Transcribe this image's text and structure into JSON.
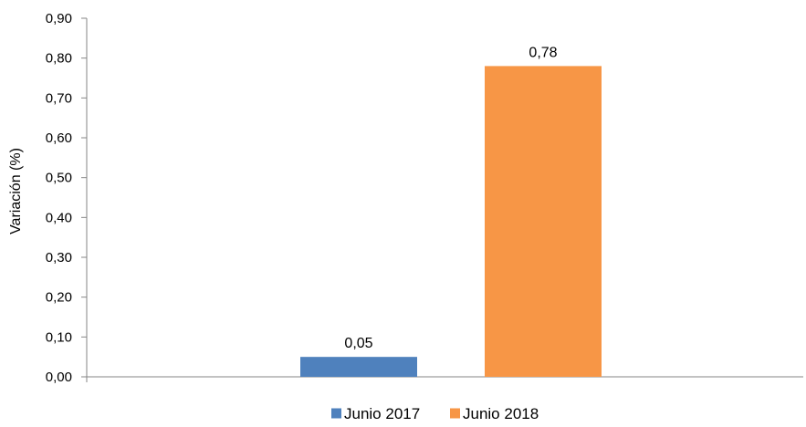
{
  "chart_data": {
    "type": "bar",
    "title": "",
    "xlabel": "",
    "ylabel": "Variación (%)",
    "ylim": [
      0,
      0.9
    ],
    "ytick_step": 0.1,
    "ytick_labels": [
      "0,00",
      "0,10",
      "0,20",
      "0,30",
      "0,40",
      "0,50",
      "0,60",
      "0,70",
      "0,80",
      "0,90"
    ],
    "grid": false,
    "legend_position": "bottom",
    "series": [
      {
        "name": "Junio 2017",
        "value": 0.05,
        "label": "0,05",
        "color": "#4f81bd"
      },
      {
        "name": "Junio 2018",
        "value": 0.78,
        "label": "0,78",
        "color": "#f79646"
      }
    ]
  }
}
